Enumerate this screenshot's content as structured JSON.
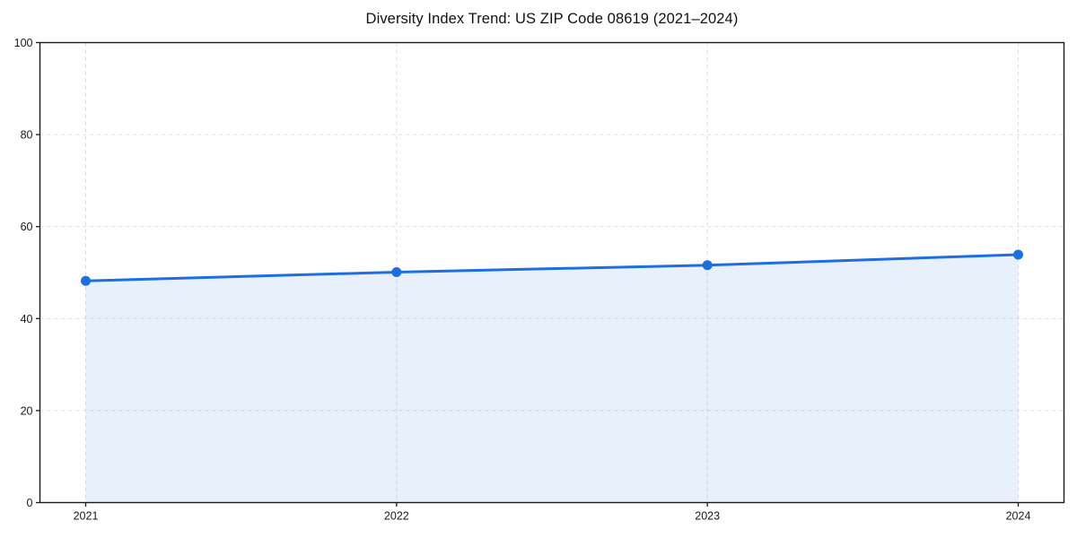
{
  "chart_data": {
    "type": "line",
    "title": "Diversity Index Trend: US ZIP Code 08619 (2021–2024)",
    "x": [
      2021,
      2022,
      2023,
      2024
    ],
    "x_tick_labels": [
      "2021",
      "2022",
      "2023",
      "2024"
    ],
    "y_ticks": [
      0,
      20,
      40,
      60,
      80,
      100
    ],
    "y_tick_labels": [
      "0",
      "20",
      "40",
      "60",
      "80",
      "100"
    ],
    "series": [
      {
        "name": "Diversity Index",
        "values": [
          48.2,
          50.1,
          51.6,
          53.9
        ]
      }
    ],
    "ylim": [
      0,
      100
    ],
    "grid": true,
    "grid_style": "dashed",
    "legend": false,
    "marker": "circle",
    "area_fill": true,
    "colors": {
      "line": "#1d6fe0",
      "marker": "#1d6fe0",
      "area_fill_rgba": "rgba(29,111,224,0.10)",
      "grid": "#dcdcdc",
      "axis": "#1a1a1a",
      "text": "#1a1a1a",
      "background": "#ffffff"
    }
  }
}
